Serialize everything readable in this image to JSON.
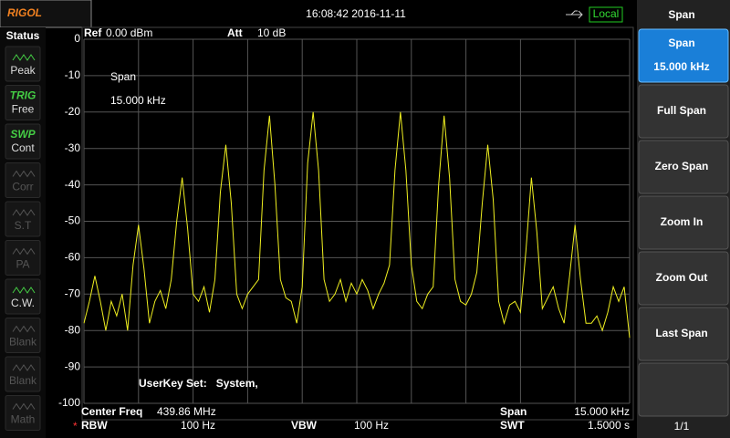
{
  "header": {
    "logo": "RIGOL",
    "datetime": "16:08:42 2016-11-11",
    "mode": "Local"
  },
  "status": {
    "title": "Status",
    "items": [
      {
        "label": "Peak",
        "active": true
      },
      {
        "tag": "TRIG",
        "label": "Free",
        "active": true
      },
      {
        "tag": "SWP",
        "label": "Cont",
        "active": true
      },
      {
        "label": "Corr",
        "active": false
      },
      {
        "label": "S.T",
        "active": false
      },
      {
        "label": "PA",
        "active": false
      },
      {
        "label": "C.W.",
        "active": true
      },
      {
        "label": "Blank",
        "active": false
      },
      {
        "label": "Blank",
        "active": false
      },
      {
        "label": "Math",
        "active": false
      }
    ]
  },
  "menu": {
    "title": "Span",
    "buttons": [
      {
        "label": "Span",
        "value": "15.000 kHz",
        "selected": true
      },
      {
        "label": "Full Span"
      },
      {
        "label": "Zero Span"
      },
      {
        "label": "Zoom In"
      },
      {
        "label": "Zoom Out"
      },
      {
        "label": "Last Span"
      }
    ],
    "page": "1/1"
  },
  "chart_data": {
    "type": "line",
    "ref": "Ref",
    "ref_value": "0.00 dBm",
    "att": "Att",
    "att_value": "10 dB",
    "annotation": [
      "Span",
      "15.000 kHz"
    ],
    "note": "UserKey Set:   System,",
    "settings": [
      {
        "label": "Center Freq",
        "value": "439.86 MHz"
      },
      {
        "label": "Span",
        "value": "15.000 kHz"
      },
      {
        "label": "RBW",
        "value": "100 Hz",
        "marker": "*"
      },
      {
        "label": "VBW",
        "value": "100 Hz"
      },
      {
        "label": "SWT",
        "value": "1.5000 s"
      }
    ],
    "ylim": [
      -100,
      0
    ],
    "yticks": [
      0,
      -10,
      -20,
      -30,
      -40,
      -50,
      -60,
      -70,
      -80,
      -90,
      -100
    ],
    "grid": true,
    "color": "#f0f020",
    "values": [
      -78,
      -72,
      -65,
      -72,
      -80,
      -72,
      -76,
      -70,
      -80,
      -62,
      -51,
      -63,
      -78,
      -72,
      -69,
      -74,
      -66,
      -50,
      -38,
      -52,
      -70,
      -72,
      -68,
      -75,
      -66,
      -42,
      -29,
      -45,
      -70,
      -74,
      -70,
      -68,
      -66,
      -36,
      -21,
      -40,
      -66,
      -71,
      -72,
      -78,
      -68,
      -34,
      -20,
      -36,
      -66,
      -72,
      -70,
      -66,
      -72,
      -67,
      -70,
      -66,
      -69,
      -74,
      -70,
      -67,
      -62,
      -36,
      -20,
      -36,
      -62,
      -72,
      -74,
      -70,
      -68,
      -40,
      -21,
      -38,
      -66,
      -72,
      -73,
      -70,
      -64,
      -45,
      -29,
      -44,
      -72,
      -78,
      -73,
      -72,
      -75,
      -58,
      -38,
      -53,
      -74,
      -71,
      -68,
      -74,
      -78,
      -65,
      -51,
      -66,
      -78,
      -78,
      -76,
      -80,
      -75,
      -68,
      -72,
      -68,
      -82
    ]
  }
}
